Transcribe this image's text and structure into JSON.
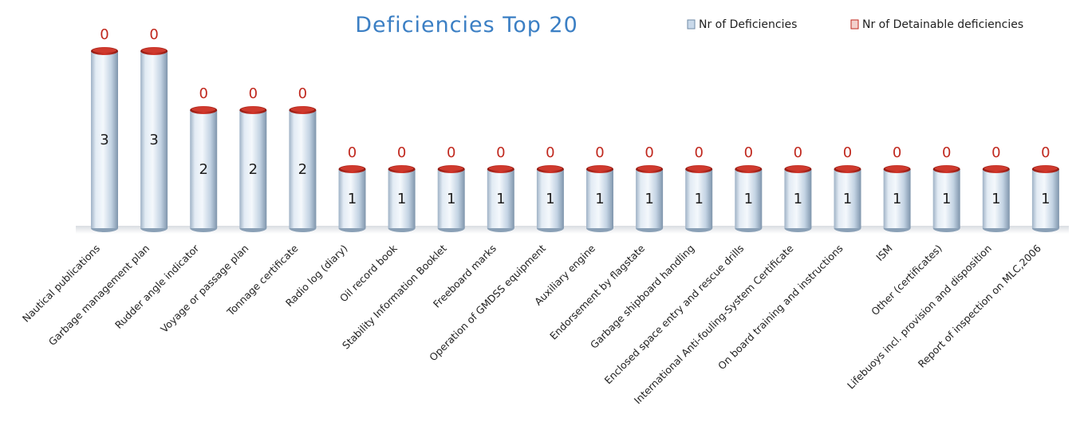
{
  "chart_data": {
    "type": "bar",
    "title": "Deficiencies Top 20",
    "legend_position": "top-right",
    "grid": false,
    "ylim": [
      0,
      3
    ],
    "categories": [
      "Nautical publications",
      "Garbage management plan",
      "Rudder angle indicator",
      "Voyage or passage plan",
      "Tonnage certificate",
      "Radio log (diary)",
      "Oil record book",
      "Stability Information Booklet",
      "Freeboard marks",
      "Operation of GMDSS equipment",
      "Auxiliary engine",
      "Endorsement by flagstate",
      "Garbage shipboard handling",
      "Enclosed space entry and rescue drills",
      "International Anti-fouling-System Certificate",
      "On board training and instructions",
      "ISM",
      "Other (certificates)",
      "Lifebuoys incl. provision and disposition",
      "Report of inspection on MLC,2006"
    ],
    "series": [
      {
        "name": "Nr of Deficiencies",
        "color": "#c9d9ea",
        "values": [
          3,
          3,
          2,
          2,
          2,
          1,
          1,
          1,
          1,
          1,
          1,
          1,
          1,
          1,
          1,
          1,
          1,
          1,
          1,
          1
        ]
      },
      {
        "name": "Nr of Detainable deficiencies",
        "color": "#c0281e",
        "values": [
          0,
          0,
          0,
          0,
          0,
          0,
          0,
          0,
          0,
          0,
          0,
          0,
          0,
          0,
          0,
          0,
          0,
          0,
          0,
          0
        ]
      }
    ]
  }
}
